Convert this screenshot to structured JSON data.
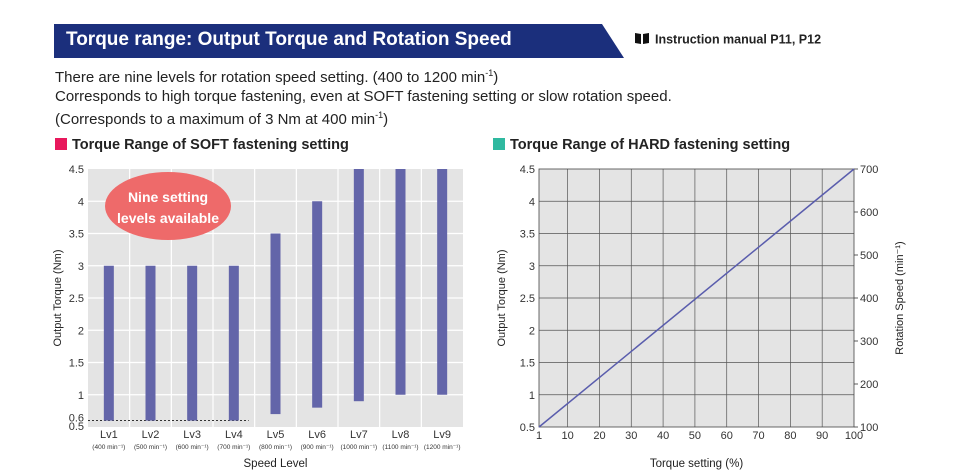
{
  "header": {
    "title": "Torque range: Output Torque and Rotation Speed",
    "manual_ref": "Instruction manual P11, P12",
    "banner_color": "#1b2f7c"
  },
  "intro": {
    "line1_a": "There are nine levels for rotation speed setting. (400 to 1200 min",
    "line1_sup": "-1",
    "line1_b": ")",
    "line2": "Corresponds to high torque fastening, even at SOFT fastening setting or slow rotation speed.",
    "line3_a": "(Corresponds to a maximum of 3 Nm at 400 min",
    "line3_sup": "-1",
    "line3_b": ")"
  },
  "soft_section": {
    "title": "Torque Range of SOFT fastening setting",
    "marker_color": "#e8185c"
  },
  "hard_section": {
    "title": "Torque Range of HARD fastening setting",
    "marker_color": "#2fb9a0"
  },
  "chart_data": [
    {
      "type": "bar",
      "title": "Torque Range of SOFT fastening setting",
      "xlabel": "Speed Level",
      "ylabel": "Output Torque (Nm)",
      "ylim": [
        0.5,
        4.5
      ],
      "yticks": [
        "0.5",
        "0.6",
        "1",
        "1.5",
        "2",
        "2.5",
        "3",
        "3.5",
        "4",
        "4.5"
      ],
      "grid": true,
      "bar_color": "#6365a9",
      "categories": [
        "Lv1",
        "Lv2",
        "Lv3",
        "Lv4",
        "Lv5",
        "Lv6",
        "Lv7",
        "Lv8",
        "Lv9"
      ],
      "category_sublabels": [
        "(400 min⁻¹)",
        "(500 min⁻¹)",
        "(600 min⁻¹)",
        "(700 min⁻¹)",
        "(800 min⁻¹)",
        "(900 min⁻¹)",
        "(1000 min⁻¹)",
        "(1100 min⁻¹)",
        "(1200 min⁻¹)"
      ],
      "ranges": [
        [
          0.6,
          3.0
        ],
        [
          0.6,
          3.0
        ],
        [
          0.6,
          3.0
        ],
        [
          0.6,
          3.0
        ],
        [
          0.7,
          3.5
        ],
        [
          0.8,
          4.0
        ],
        [
          0.9,
          4.5
        ],
        [
          1.0,
          4.5
        ],
        [
          1.0,
          4.5
        ]
      ],
      "reference_line": 0.6,
      "annotation": [
        "Nine setting",
        "levels available"
      ],
      "annotation_color": "#ee6a6a"
    },
    {
      "type": "line",
      "title": "Torque Range of HARD fastening setting",
      "xlabel": "Torque setting (%)",
      "ylabel": "Output Torque (Nm)",
      "y2label": "Rotation Speed (min⁻¹)",
      "xlim": [
        1,
        100
      ],
      "ylim": [
        0.5,
        4.5
      ],
      "y2lim": [
        100,
        700
      ],
      "xticks": [
        "1",
        "10",
        "20",
        "30",
        "40",
        "50",
        "60",
        "70",
        "80",
        "90",
        "100"
      ],
      "yticks": [
        "0.5",
        "1",
        "1.5",
        "2",
        "2.5",
        "3",
        "3.5",
        "4",
        "4.5"
      ],
      "y2ticks": [
        "100",
        "200",
        "300",
        "400",
        "500",
        "600",
        "700"
      ],
      "grid": true,
      "line_color": "#5a5dad",
      "x": [
        1,
        100
      ],
      "y": [
        0.5,
        4.5
      ]
    }
  ]
}
